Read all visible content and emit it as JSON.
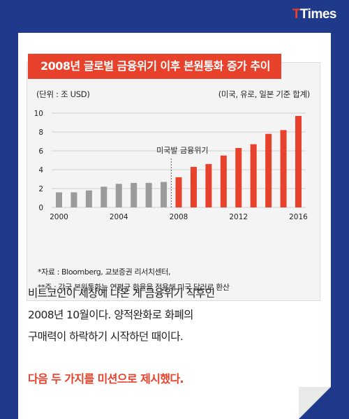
{
  "brand": {
    "logo_accent": "T",
    "logo_text": "Times",
    "accent_color": "#e8412c",
    "bar_gray": "#9b9b9b",
    "bar_red": "#e8412c",
    "background_color": "#1f3a8a"
  },
  "chart_data": {
    "type": "bar",
    "title": "2008년 글로벌 금융위기 이후 본원통화 증가 추이",
    "unit_label": "(단위 : 조 USD)",
    "note_label": "(미국, 유로, 일본 기준 합계)",
    "x": [
      2000,
      2001,
      2002,
      2003,
      2004,
      2005,
      2006,
      2007,
      2008,
      2009,
      2010,
      2011,
      2012,
      2013,
      2014,
      2015,
      2016
    ],
    "values": [
      1.6,
      1.6,
      1.8,
      2.2,
      2.5,
      2.6,
      2.6,
      2.7,
      3.2,
      4.3,
      4.6,
      5.5,
      6.3,
      6.7,
      7.8,
      8.2,
      9.7
    ],
    "highlight_from": 2008,
    "annotation": {
      "label": "미국발 금융위기",
      "at_x": 2008
    },
    "x_tick_labels": [
      "2000",
      "2004",
      "2008",
      "2012",
      "2016"
    ],
    "x_tick_values": [
      2000,
      2004,
      2008,
      2012,
      2016
    ],
    "y_ticks": [
      0,
      2,
      4,
      6,
      8,
      10
    ],
    "ylim": [
      0,
      10
    ],
    "grid": true
  },
  "sources": {
    "line1": "*자료 : Bloomberg, 교보증권 리서치센터,",
    "line2": "**주 : 각국 본원통화는 연평균 환율을 적용해 미국 달러로 환산"
  },
  "body": {
    "line1": "비트코인이 세상에 나온 게 금융위기 직후인",
    "line2": "2008년 10월이다. 양적완화로 화폐의",
    "line3": "구매력이 하락하기 시작하던 때이다."
  },
  "mission": "다음 두 가지를 미션으로 제시했다."
}
